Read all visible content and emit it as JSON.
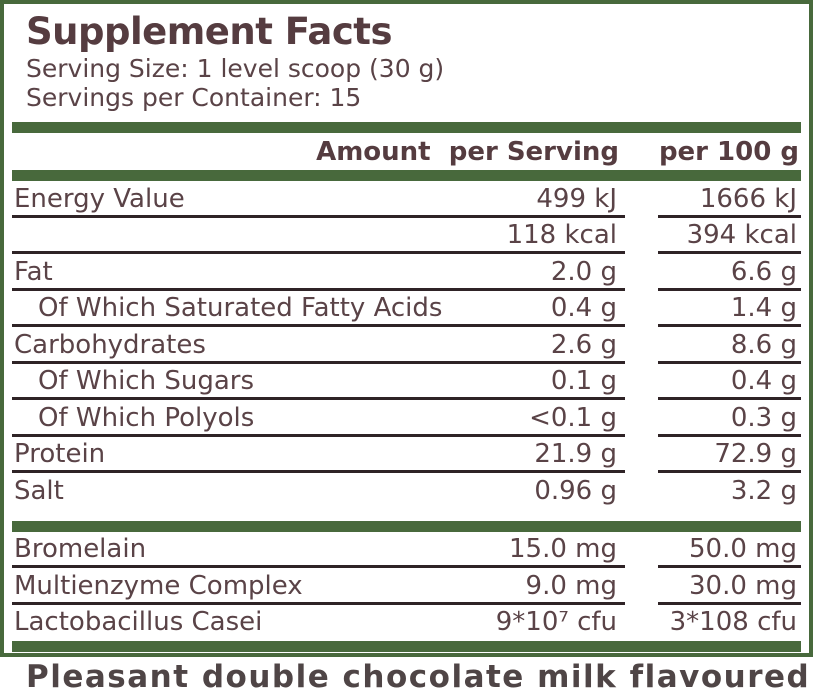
{
  "label": {
    "title": "Supplement Facts",
    "serving_size": "Serving Size: 1 level scoop (30 g)",
    "servings_per_container": "Servings per Container: 15",
    "colors": {
      "green": "#48693c",
      "brown": "#5a4347",
      "rule": "#2f2326"
    },
    "header": {
      "amount_per_serving": "Amount  per Serving",
      "per_100g": "per 100 g"
    },
    "nutrition_rows": [
      {
        "label": "Energy Value",
        "per_serving": "499 kJ",
        "per_100g": "1666 kJ"
      },
      {
        "label": "",
        "per_serving": "118 kcal",
        "per_100g": "394 kcal"
      },
      {
        "label": "Fat",
        "per_serving": "2.0 g",
        "per_100g": "6.6 g"
      },
      {
        "label": "Of Which Saturated Fatty Acids",
        "per_serving": "0.4 g",
        "per_100g": "1.4 g"
      },
      {
        "label": "Carbohydrates",
        "per_serving": "2.6 g",
        "per_100g": "8.6 g"
      },
      {
        "label": "Of Which Sugars",
        "per_serving": "0.1 g",
        "per_100g": "0.4 g"
      },
      {
        "label": "Of Which Polyols",
        "per_serving": "<0.1 g",
        "per_100g": "0.3 g"
      },
      {
        "label": "Protein",
        "per_serving": "21.9 g",
        "per_100g": "72.9 g"
      },
      {
        "label": "Salt",
        "per_serving": "0.96 g",
        "per_100g": "3.2 g"
      }
    ],
    "extra_rows": [
      {
        "label": "Bromelain",
        "per_serving": "15.0 mg",
        "per_100g": "50.0 mg"
      },
      {
        "label": "Multienzyme Complex",
        "per_serving": "9.0 mg",
        "per_100g": "30.0 mg"
      },
      {
        "label": "Lactobacillus Casei",
        "per_serving": "9*10⁷ cfu",
        "per_100g": "3*108 cfu"
      }
    ],
    "bottom_text": "Pleasant double chocolate milk flavoured"
  }
}
